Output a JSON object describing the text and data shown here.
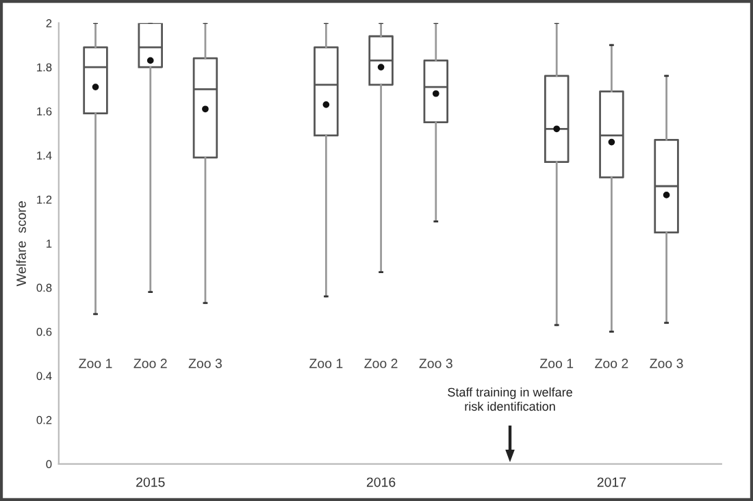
{
  "chart_data": {
    "type": "box",
    "ylabel": "Welfare  score",
    "categories": [
      "Zoo 1",
      "Zoo 2",
      "Zoo 3",
      "Zoo 1",
      "Zoo 2",
      "Zoo 3",
      "Zoo 1",
      "Zoo 2",
      "Zoo 3"
    ],
    "boxes": [
      {
        "low": 0.68,
        "q1": 1.59,
        "median": 1.8,
        "q3": 1.89,
        "high": 2,
        "mean": 1.71
      },
      {
        "low": 0.78,
        "q1": 1.8,
        "median": 1.89,
        "q3": 2,
        "high": 2,
        "mean": 1.83
      },
      {
        "low": 0.73,
        "q1": 1.39,
        "median": 1.7,
        "q3": 1.84,
        "high": 2,
        "mean": 1.61
      },
      {
        "low": 0.76,
        "q1": 1.49,
        "median": 1.72,
        "q3": 1.89,
        "high": 2,
        "mean": 1.63
      },
      {
        "low": 0.87,
        "q1": 1.72,
        "median": 1.83,
        "q3": 1.94,
        "high": 2,
        "mean": 1.8
      },
      {
        "low": 1.1,
        "q1": 1.55,
        "median": 1.71,
        "q3": 1.83,
        "high": 2,
        "mean": 1.68
      },
      {
        "low": 0.63,
        "q1": 1.37,
        "median": 1.52,
        "q3": 1.76,
        "high": 2,
        "mean": 1.52
      },
      {
        "low": 0.6,
        "q1": 1.3,
        "median": 1.49,
        "q3": 1.69,
        "high": 1.9,
        "mean": 1.46
      },
      {
        "low": 0.64,
        "q1": 1.05,
        "median": 1.26,
        "q3": 1.47,
        "high": 1.76,
        "mean": 1.22
      }
    ],
    "color": "#555555",
    "ylim": [
      0,
      2
    ],
    "yticks": [
      0,
      0.2,
      0.4,
      0.6,
      0.8,
      1,
      1.2,
      1.4,
      1.6,
      1.8,
      2
    ],
    "grid": false,
    "annotations": [
      "2015",
      "2016",
      "2017",
      "Staff training in welfare\nrisk identification"
    ]
  }
}
